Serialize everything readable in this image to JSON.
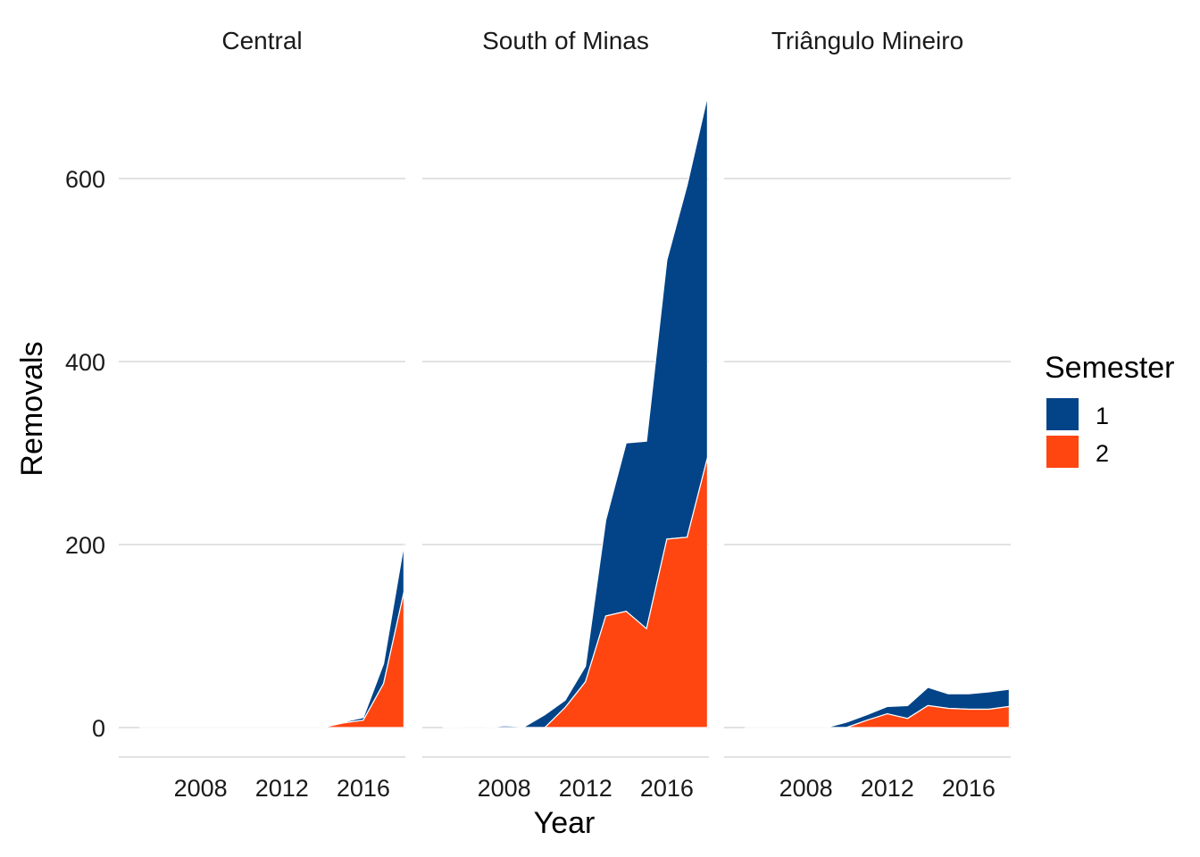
{
  "chart_data": {
    "type": "area",
    "stacked": true,
    "xlabel": "Year",
    "ylabel": "Removals",
    "x_ticks": [
      2008,
      2012,
      2016
    ],
    "y_ticks": [
      0,
      200,
      400,
      600
    ],
    "xlim": [
      2004,
      2018
    ],
    "ylim": [
      -32,
      700
    ],
    "grid": "horizontal major",
    "legend": {
      "title": "Semester",
      "position": "right",
      "entries": [
        {
          "label": "1",
          "color": "#034488"
        },
        {
          "label": "2",
          "color": "#FF4510"
        }
      ]
    },
    "x": [
      2005,
      2006,
      2007,
      2008,
      2009,
      2010,
      2011,
      2012,
      2013,
      2014,
      2015,
      2016,
      2017,
      2018
    ],
    "panels": [
      {
        "title": "Central",
        "series": [
          {
            "name": "1",
            "values": [
              0,
              0,
              0,
              0,
              0,
              0,
              0,
              0,
              0,
              0,
              1,
              3,
              22,
              52
            ]
          },
          {
            "name": "2",
            "values": [
              0,
              0,
              0,
              0,
              0,
              0,
              0,
              0,
              0,
              0,
              5,
              8,
              48,
              148
            ]
          }
        ]
      },
      {
        "title": "South of Minas",
        "series": [
          {
            "name": "1",
            "values": [
              1,
              0,
              0,
              2,
              1,
              14,
              8,
              17,
              105,
              184,
              205,
              305,
              385,
              395
            ]
          },
          {
            "name": "2",
            "values": [
              0,
              0,
              0,
              0,
              0,
              0,
              22,
              50,
              122,
              127,
              108,
              206,
              208,
              295
            ]
          }
        ]
      },
      {
        "title": "Triângulo Mineiro",
        "series": [
          {
            "name": "1",
            "values": [
              0,
              0,
              0,
              0,
              0,
              6,
              6,
              8,
              14,
              20,
              16,
              17,
              19,
              19
            ]
          },
          {
            "name": "2",
            "values": [
              0,
              0,
              0,
              0,
              0,
              0,
              8,
              15,
              10,
              24,
              21,
              20,
              20,
              23
            ]
          }
        ]
      }
    ]
  }
}
